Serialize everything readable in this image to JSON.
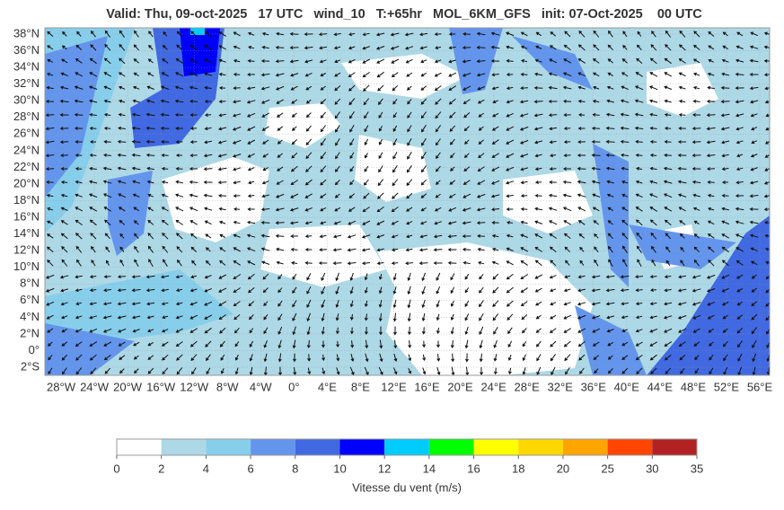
{
  "header": {
    "title": "Valid: Thu, 09-oct-2025   17 UTC   wind_10   T:+65hr   MOL_6KM_GFS   init: 07-Oct-2025    00 UTC"
  },
  "map": {
    "lat_labels": [
      "38°N",
      "36°N",
      "34°N",
      "32°N",
      "30°N",
      "28°N",
      "26°N",
      "24°N",
      "22°N",
      "20°N",
      "18°N",
      "16°N",
      "14°N",
      "12°N",
      "10°N",
      "8°N",
      "6°N",
      "4°N",
      "2°N",
      "0°",
      "2°S"
    ],
    "lon_labels": [
      "28°W",
      "24°W",
      "20°W",
      "16°W",
      "12°W",
      "8°W",
      "4°W",
      "0°",
      "4°E",
      "8°E",
      "12°E",
      "16°E",
      "20°E",
      "24°E",
      "28°E",
      "32°E",
      "36°E",
      "40°E",
      "44°E",
      "48°E",
      "52°E",
      "56°E"
    ]
  },
  "colorbar": {
    "ticks": [
      0,
      2,
      4,
      6,
      8,
      10,
      12,
      14,
      16,
      18,
      20,
      25,
      30,
      35
    ],
    "colors": [
      "#ffffff",
      "#add8e6",
      "#87ceeb",
      "#6495ed",
      "#4169e1",
      "#0000ff",
      "#00ccff",
      "#00ff00",
      "#ffff00",
      "#ffd700",
      "#ffa500",
      "#ff4500",
      "#b22222"
    ],
    "label": "Vitesse du vent (m/s)"
  }
}
